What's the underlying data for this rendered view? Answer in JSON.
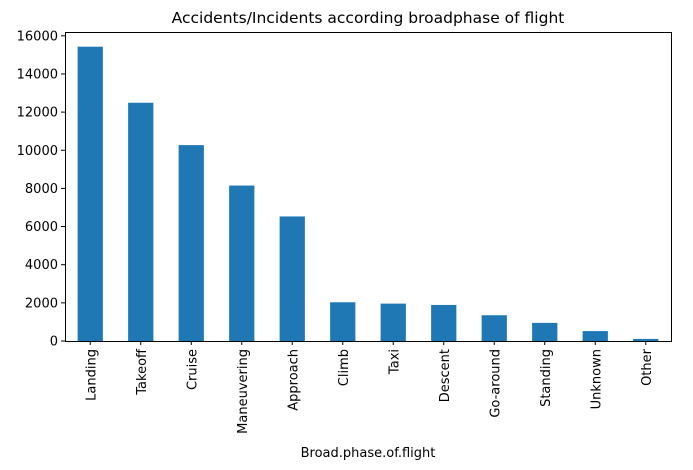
{
  "chart_data": {
    "type": "bar",
    "title": "Accidents/Incidents according broadphase of flight",
    "xlabel": "Broad.phase.of.flight",
    "ylabel": "",
    "categories": [
      "Landing",
      "Takeoff",
      "Cruise",
      "Maneuvering",
      "Approach",
      "Climb",
      "Taxi",
      "Descent",
      "Go-around",
      "Standing",
      "Unknown",
      "Other"
    ],
    "values": [
      15430,
      12490,
      10270,
      8150,
      6530,
      2030,
      1960,
      1890,
      1350,
      950,
      520,
      110
    ],
    "ylim": [
      0,
      16200
    ],
    "yticks": [
      "0",
      "2000",
      "4000",
      "6000",
      "8000",
      "10000",
      "12000",
      "14000",
      "16000"
    ],
    "bar_color": "#1f77b4",
    "grid": false,
    "legend": "none"
  }
}
